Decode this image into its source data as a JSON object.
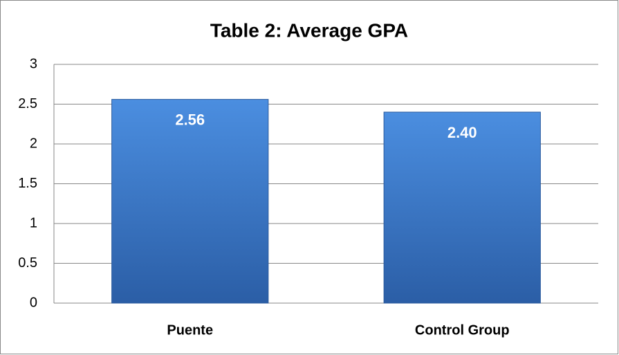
{
  "chart_data": {
    "type": "bar",
    "title": "Table 2: Average GPA",
    "categories": [
      "Puente",
      "Control Group"
    ],
    "values": [
      2.56,
      2.4
    ],
    "value_labels": [
      "2.56",
      "2.40"
    ],
    "color": "#3d7ccc",
    "ylim": [
      0,
      3
    ],
    "yticks": [
      0,
      0.5,
      1,
      1.5,
      2,
      2.5,
      3
    ],
    "grid": true
  }
}
